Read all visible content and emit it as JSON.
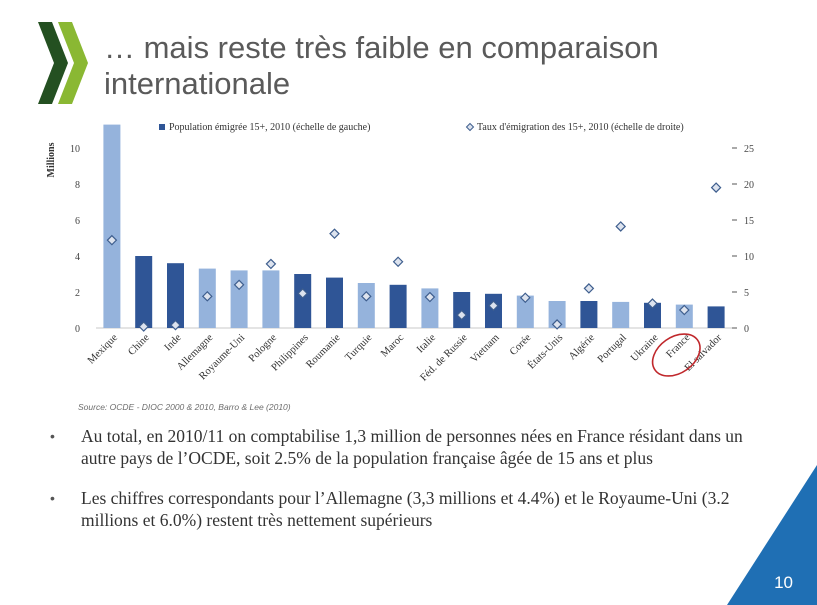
{
  "slide": {
    "title": "… mais reste très faible en comparaison internationale",
    "source": "Source:  OCDE - DIOC 2000 & 2010, Barro & Lee (2010)",
    "bullets": [
      "Au total, en 2010/11 on comptabilise 1,3 million de personnes nées en France résidant dans un autre pays de l’OCDE, soit 2.5% de la population française âgée de 15 ans et plus",
      "Les chiffres correspondants pour l’Allemagne (3,3 millions et 4.4%) et le Royaume-Uni (3.2 millions et 6.0%) restent très nettement supérieurs"
    ],
    "bullet_symbol": "•",
    "page_number": "10"
  },
  "colors": {
    "title": "#5a5a5a",
    "bar_dark": "#2f5596",
    "bar_light": "#95b3dc",
    "marker_fill": "#dde3ee",
    "marker_stroke": "#3e5e8e",
    "logo_dark": "#245021",
    "logo_light": "#8ab833",
    "corner_fill": "#1f6fb4",
    "highlight_circle": "#c0282c"
  },
  "chart_data": {
    "type": "bar",
    "categories": [
      "Mexique",
      "Chine",
      "Inde",
      "Allemagne",
      "Royaume-Uni",
      "Pologne",
      "Philippines",
      "Roumanie",
      "Turquie",
      "Maroc",
      "Italie",
      "Féd. de Russie",
      "Vietnam",
      "Corée",
      "États-Unis",
      "Algérie",
      "Portugal",
      "Ukraine",
      "France",
      "El salvador"
    ],
    "ylabel": "Millions",
    "ylim": [
      0,
      11
    ],
    "y_ticks": [
      "0",
      "2",
      "4",
      "6",
      "8",
      "10"
    ],
    "y2_ticks": [
      "0",
      "5",
      "10",
      "15",
      "20",
      "25"
    ],
    "y2lim": [
      0,
      27.5
    ],
    "grid": false,
    "legend_position": "top",
    "highlighted_category": "France",
    "series": [
      {
        "name": "Population émigrée 15+, 2010 (échelle de gauche)",
        "type": "bar",
        "axis": "left",
        "values": [
          11.3,
          4.0,
          3.6,
          3.3,
          3.2,
          3.2,
          3.0,
          2.8,
          2.5,
          2.4,
          2.2,
          2.0,
          1.9,
          1.8,
          1.5,
          1.5,
          1.45,
          1.4,
          1.3,
          1.2
        ],
        "shades": [
          "light",
          "dark",
          "dark",
          "light",
          "light",
          "light",
          "dark",
          "dark",
          "light",
          "dark",
          "light",
          "dark",
          "dark",
          "light",
          "light",
          "dark",
          "light",
          "dark",
          "light",
          "dark"
        ]
      },
      {
        "name": "Taux d'émigration des 15+, 2010 (échelle de droite)",
        "type": "scatter",
        "axis": "right",
        "values": [
          12.2,
          0.2,
          0.4,
          4.4,
          6.0,
          8.9,
          4.8,
          13.1,
          4.4,
          9.2,
          4.3,
          1.8,
          3.1,
          4.2,
          0.5,
          5.5,
          14.1,
          3.4,
          2.5,
          19.5
        ]
      }
    ]
  }
}
